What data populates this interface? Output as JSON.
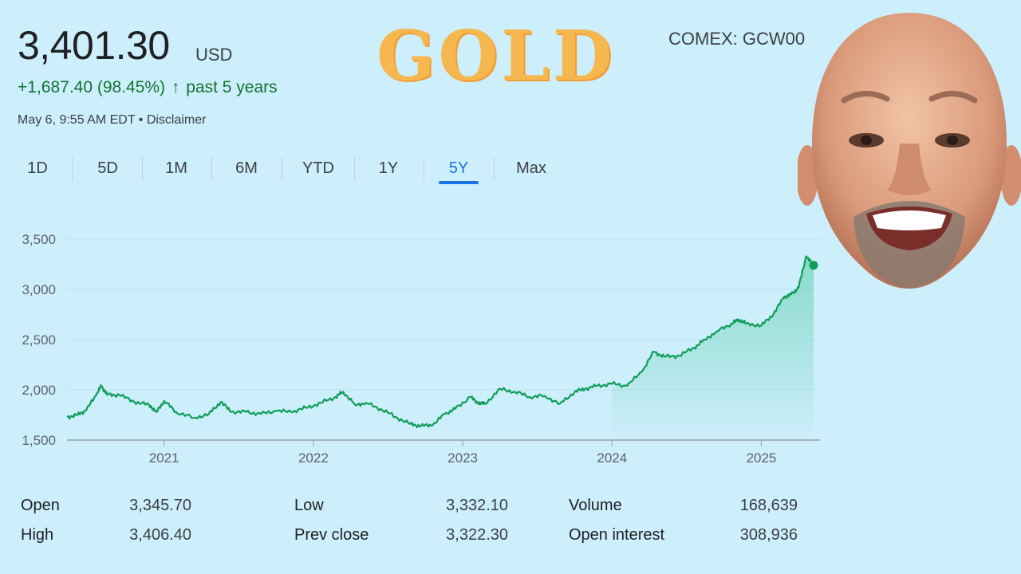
{
  "quote": {
    "price": "3,401.30",
    "currency": "USD",
    "change": "+1,687.40 (98.45%)",
    "change_arrow": "↑",
    "change_period": "past 5 years",
    "timestamp": "May 6, 9:55 AM EDT • Disclaimer",
    "ticker": "COMEX: GCW00",
    "positive_color": "#137333"
  },
  "overlay": {
    "title": "GOLD"
  },
  "range_tabs": [
    {
      "label": "1D"
    },
    {
      "label": "5D"
    },
    {
      "label": "1M"
    },
    {
      "label": "6M"
    },
    {
      "label": "YTD"
    },
    {
      "label": "1Y"
    },
    {
      "label": "5Y",
      "active": true
    },
    {
      "label": "Max"
    }
  ],
  "chart_data": {
    "type": "area",
    "line_color": "#0f9d58",
    "ylim": [
      1500,
      3500
    ],
    "y_ticks": [
      "3,500",
      "3,000",
      "2,500",
      "2,000",
      "1,500"
    ],
    "y_tick_values": [
      3500,
      3000,
      2500,
      2000,
      1500
    ],
    "x_ticks": [
      "2021",
      "2022",
      "2023",
      "2024",
      "2025"
    ],
    "x_tick_values": [
      2021,
      2022,
      2023,
      2024,
      2025
    ],
    "xlim": [
      2020.35,
      2025.35
    ],
    "grid": true,
    "series": [
      {
        "x": [
          2020.35,
          2020.42,
          2020.48,
          2020.55,
          2020.58,
          2020.62,
          2020.7,
          2020.8,
          2020.9,
          2020.95,
          2021.0,
          2021.08,
          2021.2,
          2021.3,
          2021.38,
          2021.45,
          2021.55,
          2021.65,
          2021.75,
          2021.85,
          2021.95,
          2022.05,
          2022.15,
          2022.2,
          2022.28,
          2022.35,
          2022.45,
          2022.55,
          2022.65,
          2022.72,
          2022.8,
          2022.88,
          2022.95,
          2023.05,
          2023.1,
          2023.15,
          2023.25,
          2023.35,
          2023.45,
          2023.55,
          2023.65,
          2023.75,
          2023.82,
          2023.9,
          2024.0,
          2024.1,
          2024.2,
          2024.28,
          2024.35,
          2024.45,
          2024.55,
          2024.62,
          2024.7,
          2024.8,
          2024.85,
          2024.9,
          2025.0,
          2025.08,
          2025.15,
          2025.2,
          2025.25,
          2025.3,
          2025.35
        ],
        "values": [
          1730,
          1750,
          1800,
          1960,
          2040,
          1950,
          1950,
          1880,
          1850,
          1780,
          1890,
          1780,
          1720,
          1760,
          1880,
          1780,
          1780,
          1760,
          1790,
          1780,
          1820,
          1870,
          1930,
          1980,
          1850,
          1870,
          1810,
          1730,
          1660,
          1640,
          1650,
          1760,
          1810,
          1930,
          1870,
          1860,
          2010,
          1980,
          1930,
          1940,
          1860,
          1980,
          2010,
          2040,
          2060,
          2040,
          2180,
          2380,
          2330,
          2340,
          2420,
          2500,
          2580,
          2660,
          2700,
          2660,
          2640,
          2750,
          2920,
          2950,
          3020,
          3330,
          3240
        ]
      }
    ]
  },
  "stats": {
    "open_label": "Open",
    "open_value": "3,345.70",
    "high_label": "High",
    "high_value": "3,406.40",
    "low_label": "Low",
    "low_value": "3,332.10",
    "prev_close_label": "Prev close",
    "prev_close_value": "3,322.30",
    "volume_label": "Volume",
    "volume_value": "168,639",
    "open_interest_label": "Open interest",
    "open_interest_value": "308,936"
  }
}
